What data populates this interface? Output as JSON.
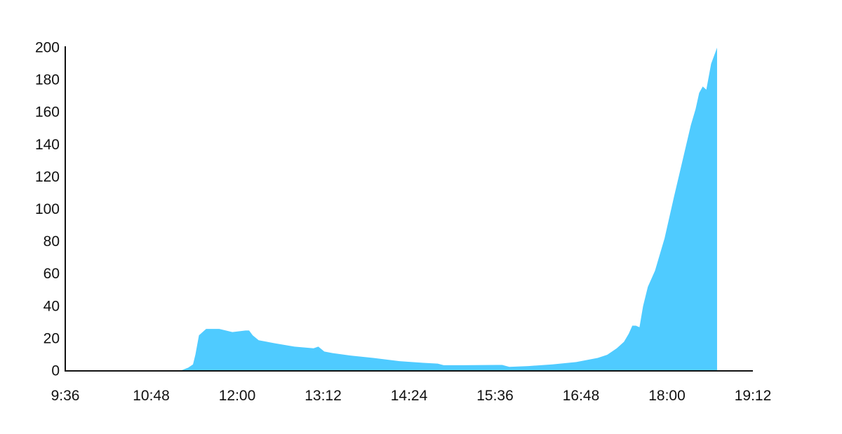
{
  "chart_data": {
    "type": "area",
    "title": "",
    "xlabel": "",
    "ylabel": "",
    "grid": false,
    "legend": "none",
    "fill_color": "#4fcbff",
    "axis_color": "#111111",
    "x_ticks": [
      "9:36",
      "10:48",
      "12:00",
      "13:12",
      "14:24",
      "15:36",
      "16:48",
      "18:00",
      "19:12"
    ],
    "y_ticks": [
      "0",
      "20",
      "40",
      "60",
      "80",
      "100",
      "120",
      "140",
      "160",
      "180",
      "200"
    ],
    "xlim": [
      "9:36",
      "19:12"
    ],
    "ylim": [
      0,
      200
    ],
    "series": [
      {
        "x": [
          "11:12",
          "11:19",
          "11:23",
          "11:25",
          "11:28",
          "11:34",
          "11:45",
          "11:56",
          "12:07",
          "12:10",
          "12:13",
          "12:18",
          "12:32",
          "12:48",
          "13:04",
          "13:08",
          "13:13",
          "13:20",
          "13:35",
          "13:54",
          "14:16",
          "14:36",
          "14:48",
          "14:53",
          "15:10",
          "15:38",
          "15:42",
          "15:48",
          "16:04",
          "16:24",
          "16:44",
          "17:02",
          "17:10",
          "17:18",
          "17:24",
          "17:28",
          "17:31",
          "17:34",
          "17:37",
          "17:40",
          "17:44",
          "17:50",
          "17:58",
          "18:06",
          "18:13",
          "18:20",
          "18:24",
          "18:27",
          "18:30",
          "18:33",
          "18:37",
          "18:42"
        ],
        "y": [
          0,
          2,
          4,
          10,
          22,
          26,
          26,
          24,
          25,
          25,
          22,
          19,
          17,
          15,
          14,
          15,
          12,
          11,
          9.5,
          8,
          6,
          5,
          4.5,
          3.5,
          3.5,
          3.7,
          3.7,
          2.5,
          3,
          4,
          5.5,
          8,
          10,
          14,
          18,
          23,
          28,
          28,
          27,
          40,
          52,
          62,
          82,
          108,
          130,
          152,
          162,
          172,
          176,
          174,
          190,
          200
        ]
      }
    ]
  }
}
